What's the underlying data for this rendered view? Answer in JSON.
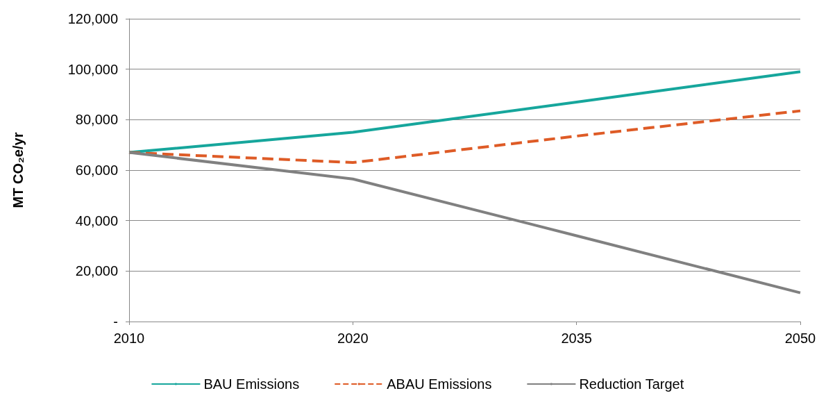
{
  "chart_data": {
    "type": "line",
    "ylabel": "MT CO₂e/yr",
    "categories": [
      "2010",
      "2020",
      "2035",
      "2050"
    ],
    "series": [
      {
        "name": "BAU Emissions",
        "color": "#16a69c",
        "line_style": "solid",
        "values": [
          67000,
          75000,
          87000,
          99000
        ]
      },
      {
        "name": "ABAU Emissions",
        "color": "#de5b26",
        "line_style": "dashed",
        "values": [
          67000,
          63000,
          73500,
          83500
        ]
      },
      {
        "name": "Reduction Target",
        "color": "#808080",
        "line_style": "solid",
        "values": [
          67000,
          56500,
          34000,
          11400
        ]
      }
    ],
    "ylim": [
      0,
      120000
    ],
    "yticks": [
      {
        "value": 0,
        "label": "-"
      },
      {
        "value": 20000,
        "label": "20,000"
      },
      {
        "value": 40000,
        "label": "40,000"
      },
      {
        "value": 60000,
        "label": "60,000"
      },
      {
        "value": 80000,
        "label": "80,000"
      },
      {
        "value": 100000,
        "label": "100,000"
      },
      {
        "value": 120000,
        "label": "120,000"
      }
    ],
    "grid": "y",
    "legend": "bottom",
    "marker": "none"
  }
}
